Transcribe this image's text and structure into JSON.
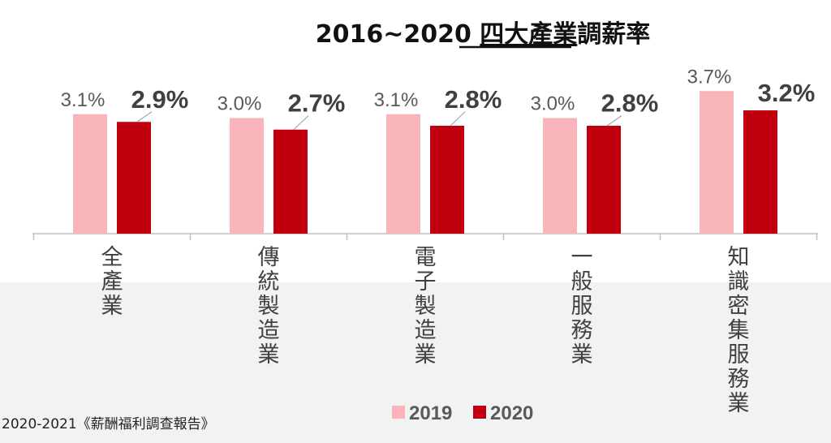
{
  "chart_data": {
    "type": "bar",
    "title_prefix": "2016~2020 ",
    "title_underlined": "四大產業",
    "title_suffix": "調薪率",
    "categories": [
      "全產業",
      "傳統製造業",
      "電子製造業",
      "一般服務業",
      "知識密集服務業"
    ],
    "series": [
      {
        "name": "2019",
        "values": [
          3.1,
          3.0,
          3.1,
          3.0,
          3.7
        ],
        "labels": [
          "3.1%",
          "3.0%",
          "3.1%",
          "3.0%",
          "3.7%"
        ],
        "color": "#f8b4b8"
      },
      {
        "name": "2020",
        "values": [
          2.9,
          2.7,
          2.8,
          2.8,
          3.2
        ],
        "labels": [
          "2.9%",
          "2.7%",
          "2.8%",
          "2.8%",
          "3.2%"
        ],
        "color": "#c0000e"
      }
    ],
    "legend_position": "bottom-center",
    "grid": false
  },
  "source": "2020-2021《薪酬福利調查報告》"
}
